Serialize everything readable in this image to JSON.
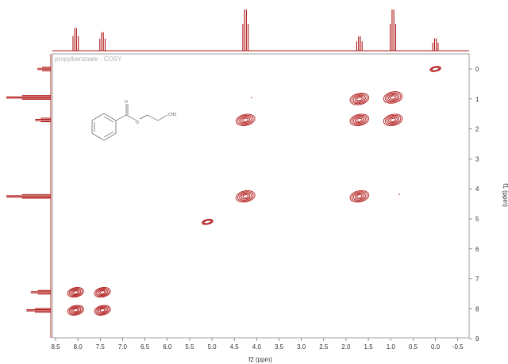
{
  "chart_data": {
    "type": "contour",
    "title": "propylbenzoate - COSY",
    "xlabel": "f2 (ppm)",
    "ylabel": "f1 (ppm)",
    "xlim": [
      8.6,
      -0.5
    ],
    "ylim": [
      -0.5,
      9.2
    ],
    "xticks": [
      "8.5",
      "8.0",
      "7.5",
      "7.0",
      "6.5",
      "6.0",
      "5.5",
      "5.0",
      "4.5",
      "4.0",
      "3.5",
      "3.0",
      "2.5",
      "2.0",
      "1.5",
      "1.0",
      "0.5",
      "0.0",
      "-0.5"
    ],
    "yticks": [
      "0",
      "1",
      "2",
      "3",
      "4",
      "5",
      "6",
      "7",
      "8",
      "9"
    ],
    "cross_peaks": [
      {
        "f2": 0.0,
        "f1": 0.0
      },
      {
        "f2": 1.7,
        "f1": 1.0
      },
      {
        "f2": 0.95,
        "f1": 0.95
      },
      {
        "f2": 4.25,
        "f1": 1.7
      },
      {
        "f2": 1.7,
        "f1": 1.7
      },
      {
        "f2": 0.95,
        "f1": 1.7
      },
      {
        "f2": 4.25,
        "f1": 4.25
      },
      {
        "f2": 1.7,
        "f1": 4.25
      },
      {
        "f2": 5.1,
        "f1": 5.1
      },
      {
        "f2": 8.05,
        "f1": 7.45
      },
      {
        "f2": 7.45,
        "f1": 7.45
      },
      {
        "f2": 8.05,
        "f1": 8.05
      },
      {
        "f2": 7.45,
        "f1": 8.05
      }
    ],
    "proton_peaks": [
      {
        "ppm": 8.05,
        "height": 0.55
      },
      {
        "ppm": 7.45,
        "height": 0.45
      },
      {
        "ppm": 4.25,
        "height": 1.0
      },
      {
        "ppm": 1.7,
        "height": 0.35
      },
      {
        "ppm": 0.95,
        "height": 1.0
      },
      {
        "ppm": 0.0,
        "height": 0.3
      }
    ]
  },
  "structure": {
    "carbonyl_o": "O",
    "ester_o": "O",
    "methyl": "CH3"
  }
}
